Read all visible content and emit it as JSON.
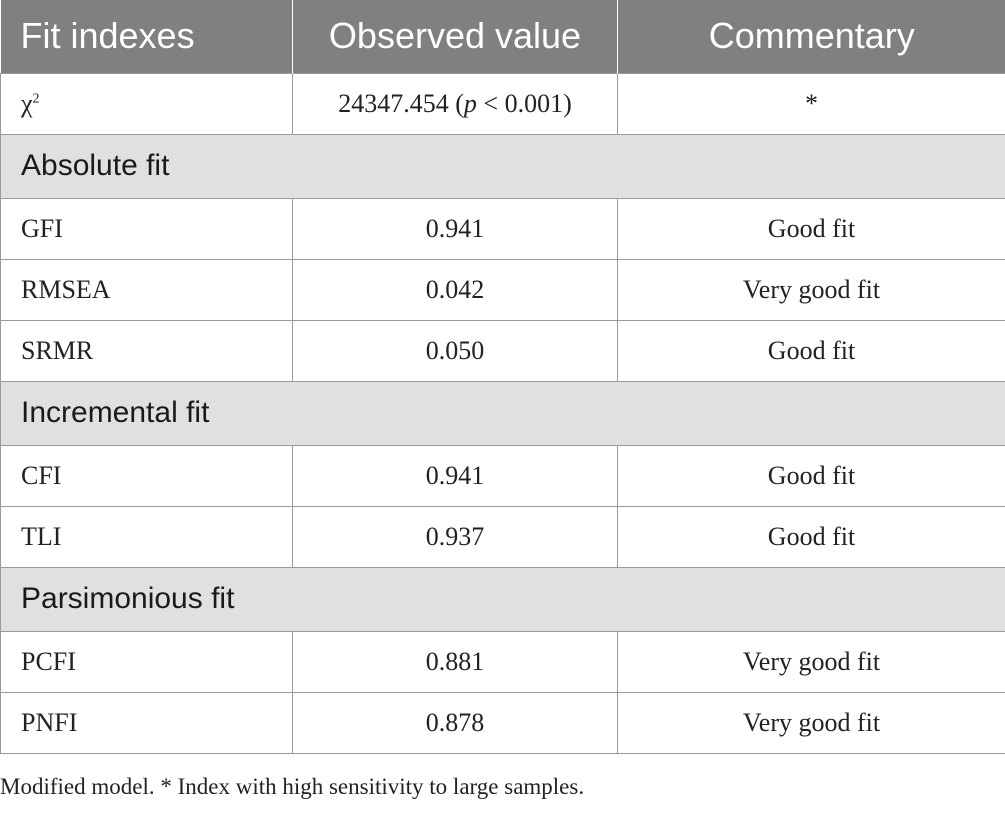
{
  "table": {
    "headers": [
      "Fit indexes",
      "Observed value",
      "Commentary"
    ],
    "chi_row": {
      "symbol": "χ",
      "superscript": "2",
      "value_prefix": "24347.454 (",
      "p_symbol": "p",
      "value_suffix": " < 0.001)",
      "commentary": "*"
    },
    "sections": [
      {
        "title": "Absolute fit",
        "rows": [
          {
            "index": "GFI",
            "value": "0.941",
            "commentary": "Good fit"
          },
          {
            "index": "RMSEA",
            "value": "0.042",
            "commentary": "Very good fit"
          },
          {
            "index": "SRMR",
            "value": "0.050",
            "commentary": "Good fit"
          }
        ]
      },
      {
        "title": "Incremental fit",
        "rows": [
          {
            "index": "CFI",
            "value": "0.941",
            "commentary": "Good fit"
          },
          {
            "index": "TLI",
            "value": "0.937",
            "commentary": "Good fit"
          }
        ]
      },
      {
        "title": "Parsimonious fit",
        "rows": [
          {
            "index": "PCFI",
            "value": "0.881",
            "commentary": "Very good fit"
          },
          {
            "index": "PNFI",
            "value": "0.878",
            "commentary": "Very good fit"
          }
        ]
      }
    ]
  },
  "footnote": "Modified model. * Index with high sensitivity to large samples.",
  "colors": {
    "header_bg": "#808080",
    "section_bg": "#e0e0e0",
    "border": "#9a9a9a"
  }
}
